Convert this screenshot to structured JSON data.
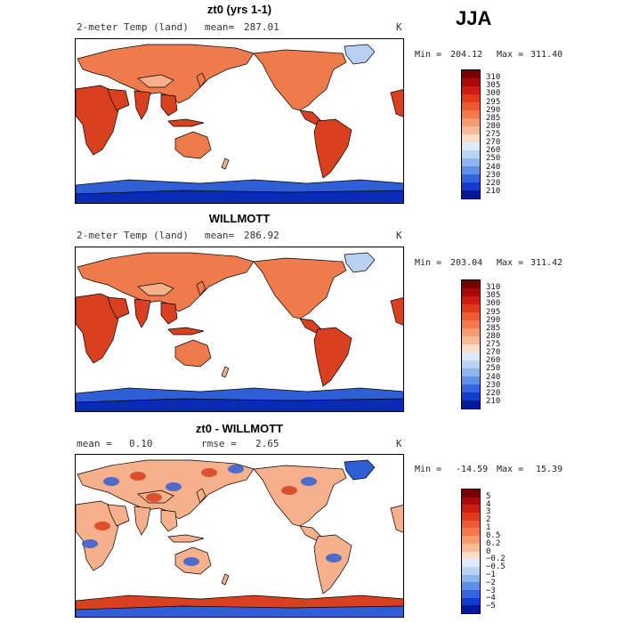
{
  "season": "JJA",
  "panels": [
    {
      "title": "zt0 (yrs 1-1)",
      "left_label": "2-meter Temp (land)",
      "stat_label": "mean=",
      "stat_value": "287.01",
      "stat2_label": "",
      "stat2_value": "",
      "units": "K",
      "min_label": "Min =",
      "min_value": "204.12",
      "max_label": "Max =",
      "max_value": "311.40",
      "colorbar_labels": [
        "310",
        "305",
        "300",
        "295",
        "290",
        "285",
        "280",
        "275",
        "270",
        "260",
        "250",
        "240",
        "230",
        "220",
        "210"
      ],
      "colorbar_colors": [
        "#7a0000",
        "#a80a0a",
        "#cc1d10",
        "#e03a1a",
        "#ec5a30",
        "#f2794a",
        "#f69a70",
        "#f8bb98",
        "#fbdcc6",
        "#ddeaf8",
        "#b9d3f4",
        "#8db5ee",
        "#5f8ee6",
        "#3364dc",
        "#123ccc",
        "#001a9a"
      ]
    },
    {
      "title": "WILLMOTT",
      "left_label": "2-meter Temp (land)",
      "stat_label": "mean=",
      "stat_value": "286.92",
      "stat2_label": "",
      "stat2_value": "",
      "units": "K",
      "min_label": "Min =",
      "min_value": "203.04",
      "max_label": "Max =",
      "max_value": "311.42",
      "colorbar_labels": [
        "310",
        "305",
        "300",
        "295",
        "290",
        "285",
        "280",
        "275",
        "270",
        "260",
        "250",
        "240",
        "230",
        "220",
        "210"
      ],
      "colorbar_colors": [
        "#7a0000",
        "#a80a0a",
        "#cc1d10",
        "#e03a1a",
        "#ec5a30",
        "#f2794a",
        "#f69a70",
        "#f8bb98",
        "#fbdcc6",
        "#ddeaf8",
        "#b9d3f4",
        "#8db5ee",
        "#5f8ee6",
        "#3364dc",
        "#123ccc",
        "#001a9a"
      ]
    },
    {
      "title": "zt0 - WILLMOTT",
      "left_label": "",
      "stat_label": "mean =",
      "stat_value": "0.10",
      "stat2_label": "rmse =",
      "stat2_value": "2.65",
      "units": "K",
      "min_label": "Min =",
      "min_value": "-14.59",
      "max_label": "Max =",
      "max_value": "15.39",
      "colorbar_labels": [
        "5",
        "4",
        "3",
        "2",
        "1",
        "0.5",
        "0.2",
        "0",
        "−0.2",
        "−0.5",
        "−1",
        "−2",
        "−3",
        "−4",
        "−5"
      ],
      "colorbar_colors": [
        "#7a0000",
        "#a80a0a",
        "#cc1d10",
        "#e03a1a",
        "#ec5a30",
        "#f2794a",
        "#f69a70",
        "#f8bb98",
        "#fbdcc6",
        "#ddeaf8",
        "#b9d3f4",
        "#8db5ee",
        "#5f8ee6",
        "#3364dc",
        "#123ccc",
        "#001a9a"
      ]
    }
  ],
  "map_colors": {
    "hot": "#d8401f",
    "warm": "#ef7a4c",
    "mild": "#f6b08c",
    "cold": "#2e5fd6",
    "cold_dark": "#0a2bb8",
    "ice_light": "#b8d0f2"
  }
}
